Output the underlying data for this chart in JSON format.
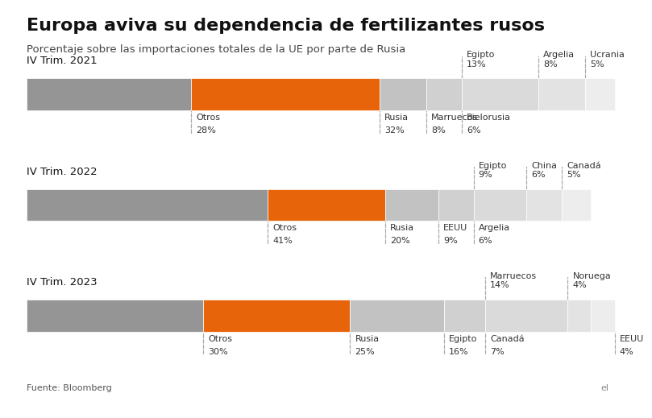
{
  "title": "Europa aviva su dependencia de fertilizantes rusos",
  "subtitle": "Porcentaje sobre las importaciones totales de la UE por parte de Rusia",
  "source": "Fuente: Bloomberg",
  "background_color": "#ffffff",
  "rows": [
    {
      "year": "IV Trim. 2021",
      "segments": [
        {
          "label": "Otros",
          "value": 28,
          "color": "#959595"
        },
        {
          "label": "Rusia",
          "value": 32,
          "color": "#e8640a"
        },
        {
          "label": "Marruecos",
          "value": 8,
          "color": "#c2c2c2"
        },
        {
          "label": "Bielorusia",
          "value": 6,
          "color": "#d0d0d0"
        },
        {
          "label": "Egipto",
          "value": 13,
          "color": "#dadada"
        },
        {
          "label": "Argelia",
          "value": 8,
          "color": "#e3e3e3"
        },
        {
          "label": "Ucrania",
          "value": 5,
          "color": "#ededed"
        }
      ],
      "below_labels": [
        {
          "label": "Otros",
          "pct": "28%",
          "seg_idx": 0,
          "at": "right"
        },
        {
          "label": "Rusia",
          "pct": "32%",
          "seg_idx": 1,
          "at": "right"
        },
        {
          "label": "Marruecos",
          "pct": "8%",
          "seg_idx": 2,
          "at": "center"
        },
        {
          "label": "Bielorusia",
          "pct": "6%",
          "seg_idx": 3,
          "at": "center"
        }
      ],
      "above_labels": [
        {
          "label": "Egipto",
          "pct": "13%",
          "seg_idx": 4,
          "at": "center"
        },
        {
          "label": "Argelia",
          "pct": "8%",
          "seg_idx": 5,
          "at": "center"
        },
        {
          "label": "Ucrania",
          "pct": "5%",
          "seg_idx": 6,
          "at": "center"
        }
      ]
    },
    {
      "year": "IV Trim. 2022",
      "segments": [
        {
          "label": "Otros",
          "value": 41,
          "color": "#959595"
        },
        {
          "label": "Rusia",
          "value": 20,
          "color": "#e8640a"
        },
        {
          "label": "EEUU",
          "value": 9,
          "color": "#c2c2c2"
        },
        {
          "label": "Argelia",
          "value": 6,
          "color": "#d0d0d0"
        },
        {
          "label": "Egipto",
          "value": 9,
          "color": "#dadada"
        },
        {
          "label": "China",
          "value": 6,
          "color": "#e3e3e3"
        },
        {
          "label": "Canadá",
          "value": 5,
          "color": "#ededed"
        }
      ],
      "below_labels": [
        {
          "label": "Otros",
          "pct": "41%",
          "seg_idx": 0,
          "at": "right"
        },
        {
          "label": "Rusia",
          "pct": "20%",
          "seg_idx": 1,
          "at": "right"
        },
        {
          "label": "EEUU",
          "pct": "9%",
          "seg_idx": 2,
          "at": "center"
        },
        {
          "label": "Argelia",
          "pct": "6%",
          "seg_idx": 3,
          "at": "center"
        }
      ],
      "above_labels": [
        {
          "label": "Egipto",
          "pct": "9%",
          "seg_idx": 4,
          "at": "center"
        },
        {
          "label": "China",
          "pct": "6%",
          "seg_idx": 5,
          "at": "center"
        },
        {
          "label": "Canadá",
          "pct": "5%",
          "seg_idx": 6,
          "at": "center"
        }
      ]
    },
    {
      "year": "IV Trim. 2023",
      "segments": [
        {
          "label": "Otros",
          "value": 30,
          "color": "#959595"
        },
        {
          "label": "Rusia",
          "value": 25,
          "color": "#e8640a"
        },
        {
          "label": "Egipto",
          "value": 16,
          "color": "#c2c2c2"
        },
        {
          "label": "Canadá",
          "value": 7,
          "color": "#d0d0d0"
        },
        {
          "label": "Marruecos",
          "value": 14,
          "color": "#dadada"
        },
        {
          "label": "Noruega",
          "value": 4,
          "color": "#e3e3e3"
        },
        {
          "label": "EEUU",
          "value": 4,
          "color": "#ededed"
        }
      ],
      "below_labels": [
        {
          "label": "Otros",
          "pct": "30%",
          "seg_idx": 0,
          "at": "right"
        },
        {
          "label": "Rusia",
          "pct": "25%",
          "seg_idx": 1,
          "at": "right"
        },
        {
          "label": "Egipto",
          "pct": "16%",
          "seg_idx": 2,
          "at": "center"
        },
        {
          "label": "Canadá",
          "pct": "7%",
          "seg_idx": 3,
          "at": "center"
        },
        {
          "label": "EEUU",
          "pct": "4%",
          "seg_idx": 6,
          "at": "center"
        }
      ],
      "above_labels": [
        {
          "label": "Marruecos",
          "pct": "14%",
          "seg_idx": 4,
          "at": "center"
        },
        {
          "label": "Noruega",
          "pct": "4%",
          "seg_idx": 5,
          "at": "center"
        }
      ]
    }
  ],
  "title_fontsize": 16,
  "subtitle_fontsize": 9.5,
  "label_fontsize": 8,
  "year_fontsize": 9.5,
  "source_fontsize": 8,
  "logo_fontsize": 8
}
